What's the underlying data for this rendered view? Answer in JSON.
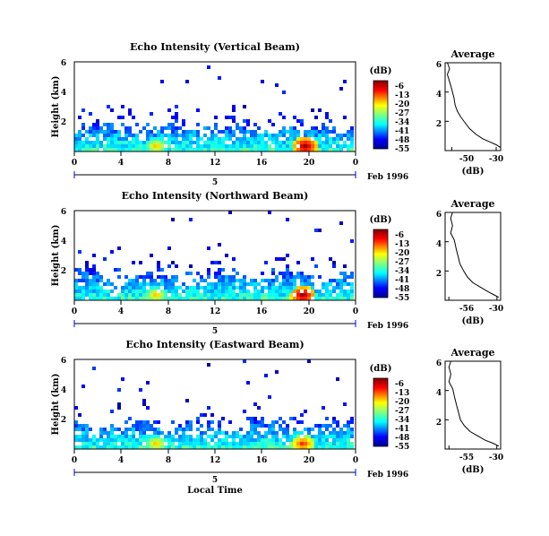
{
  "chart_data": [
    {
      "type": "heatmap",
      "title": "Echo Intensity (Vertical Beam)",
      "ylabel": "Height (km)",
      "colorbar_label": "(dB)",
      "colorbar_ticks": [
        "-6",
        "-13",
        "-20",
        "-27",
        "-34",
        "-41",
        "-48",
        "-55"
      ],
      "xticks": [
        "0",
        "4",
        "8",
        "12",
        "16",
        "20",
        "0"
      ],
      "yticks": [
        "2",
        "4",
        "6"
      ],
      "ylim": [
        0,
        6
      ],
      "xlim": [
        0,
        24
      ],
      "date_label": "Feb 1996",
      "day_label": "5",
      "hotspots": [
        {
          "x": 7,
          "z": -20
        },
        {
          "x": 19.7,
          "z": -6
        }
      ]
    },
    {
      "type": "heatmap",
      "title": "Echo Intensity (Northward Beam)",
      "ylabel": "Height (km)",
      "colorbar_label": "(dB)",
      "colorbar_ticks": [
        "-6",
        "-13",
        "-20",
        "-27",
        "-34",
        "-41",
        "-48",
        "-55"
      ],
      "xticks": [
        "0",
        "4",
        "8",
        "12",
        "16",
        "20",
        "0"
      ],
      "yticks": [
        "2",
        "4",
        "6"
      ],
      "ylim": [
        0,
        6
      ],
      "xlim": [
        0,
        24
      ],
      "date_label": "Feb 1996",
      "day_label": "5",
      "hotspots": [
        {
          "x": 7,
          "z": -20
        },
        {
          "x": 19.5,
          "z": -6
        }
      ]
    },
    {
      "type": "heatmap",
      "title": "Echo Intensity (Eastward Beam)",
      "ylabel": "Height (km)",
      "colorbar_label": "(dB)",
      "colorbar_ticks": [
        "-6",
        "-13",
        "-20",
        "-27",
        "-34",
        "-41",
        "-48",
        "-55"
      ],
      "xticks": [
        "0",
        "4",
        "8",
        "12",
        "16",
        "20",
        "0"
      ],
      "yticks": [
        "2",
        "4",
        "6"
      ],
      "ylim": [
        0,
        6
      ],
      "xlim": [
        0,
        24
      ],
      "date_label": "Feb 1996",
      "day_label": "5",
      "xlabel": "Local Time",
      "hotspots": [
        {
          "x": 7,
          "z": -20
        },
        {
          "x": 19.5,
          "z": -13
        }
      ]
    }
  ],
  "profiles": [
    {
      "type": "line",
      "title": "Average",
      "xlabel": "(dB)",
      "xticks": [
        "-50",
        "-30"
      ],
      "xtick_values": [
        -50,
        -30
      ],
      "yticks": [
        "2",
        "4",
        "6"
      ],
      "xlim": [
        -53,
        -28
      ],
      "ylim": [
        0,
        6
      ],
      "x": [
        -28,
        -30,
        -33,
        -36,
        -39,
        -42,
        -44,
        -46,
        -47.5,
        -48.5,
        -49,
        -50,
        -51,
        -52,
        -51,
        -52
      ],
      "y": [
        0.2,
        0.4,
        0.6,
        0.8,
        1.1,
        1.5,
        1.9,
        2.3,
        2.7,
        3.1,
        3.6,
        4.2,
        4.7,
        5.2,
        5.6,
        6.0
      ]
    },
    {
      "type": "line",
      "title": "Average",
      "xlabel": "(dB)",
      "xticks": [
        "-56",
        "-30"
      ],
      "xtick_values": [
        -56,
        -30
      ],
      "yticks": [
        "2",
        "4",
        "6"
      ],
      "xlim": [
        -58,
        -28
      ],
      "ylim": [
        0,
        6
      ],
      "x": [
        -29,
        -32,
        -35,
        -39,
        -43,
        -46,
        -48,
        -50,
        -51,
        -52,
        -53,
        -55,
        -54,
        -55,
        -54
      ],
      "y": [
        0.2,
        0.4,
        0.6,
        0.9,
        1.2,
        1.6,
        2.0,
        2.5,
        3.0,
        3.5,
        4.1,
        4.6,
        5.1,
        5.6,
        6.0
      ]
    },
    {
      "type": "line",
      "title": "Average",
      "xlabel": "(dB)",
      "xticks": [
        "-55",
        "-30"
      ],
      "xtick_values": [
        -55,
        -30
      ],
      "yticks": [
        "2",
        "4",
        "6"
      ],
      "xlim": [
        -57,
        -28
      ],
      "ylim": [
        0,
        6
      ],
      "x": [
        -29,
        -32,
        -36,
        -40,
        -44,
        -47,
        -49,
        -50,
        -51,
        -52,
        -53,
        -55,
        -54,
        -55,
        -54
      ],
      "y": [
        0.2,
        0.4,
        0.6,
        0.9,
        1.2,
        1.6,
        2.0,
        2.5,
        3.0,
        3.5,
        4.1,
        4.6,
        5.1,
        5.6,
        6.0
      ]
    }
  ]
}
